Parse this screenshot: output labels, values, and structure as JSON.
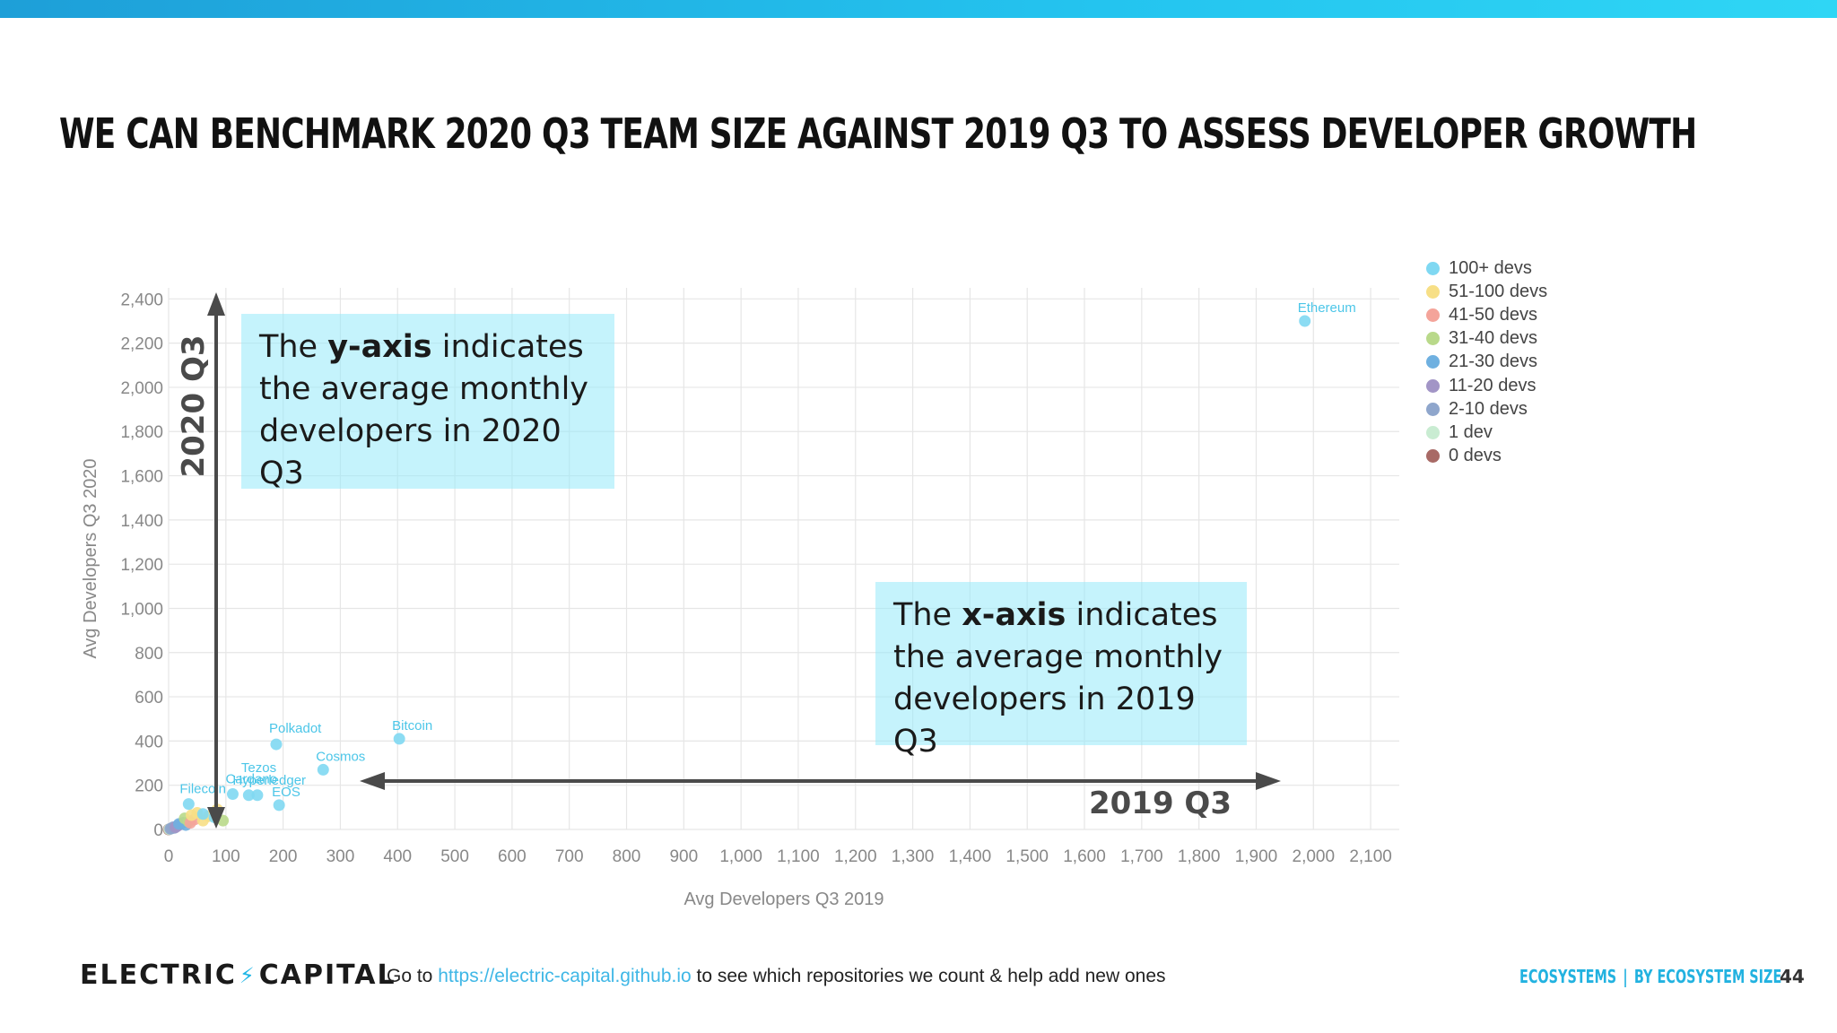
{
  "slide": {
    "title": "We can benchmark 2020 Q3 team size against 2019 Q3 to assess developer growth"
  },
  "colors": {
    "accent": "#24c4ef",
    "callout_bg": "#96e9fa",
    "arrow": "#4a4a4a",
    "point_label": "#4cc6e8"
  },
  "callouts": {
    "y": {
      "pre": "The ",
      "bold": "y-axis",
      "post": " indicates the average monthly developers in 2020 Q3"
    },
    "x": {
      "pre": "The ",
      "bold": "x-axis",
      "post": " indicates the average monthly developers in 2019 Q3"
    }
  },
  "arrows": {
    "y_label": "2020 Q3",
    "x_label": "2019 Q3"
  },
  "chart_data": {
    "type": "scatter",
    "xlabel": "Avg Developers Q3 2019",
    "ylabel": "Avg Developers Q3 2020",
    "xlim": [
      0,
      2150
    ],
    "ylim": [
      0,
      2450
    ],
    "xticks": [
      0,
      100,
      200,
      300,
      400,
      500,
      600,
      700,
      800,
      900,
      1000,
      1100,
      1200,
      1300,
      1400,
      1500,
      1600,
      1700,
      1800,
      1900,
      2000,
      2100
    ],
    "yticks": [
      0,
      200,
      400,
      600,
      800,
      1000,
      1200,
      1400,
      1600,
      1800,
      2000,
      2200,
      2400
    ],
    "grid": true,
    "legend_position": "right",
    "series": [
      {
        "name": "100+ devs",
        "color": "#7fd8f2",
        "points": [
          {
            "label": "Ethereum",
            "x": 1985,
            "y": 2300
          },
          {
            "label": "Bitcoin",
            "x": 403,
            "y": 410
          },
          {
            "label": "Polkadot",
            "x": 188,
            "y": 385
          },
          {
            "label": "Cosmos",
            "x": 270,
            "y": 270
          },
          {
            "label": "Tezos",
            "x": 155,
            "y": 155
          },
          {
            "label": "Cardano",
            "x": 112,
            "y": 160
          },
          {
            "label": "Hyperledger",
            "x": 140,
            "y": 155
          },
          {
            "label": "EOS",
            "x": 193,
            "y": 110
          },
          {
            "label": "Filecoin",
            "x": 35,
            "y": 115
          },
          {
            "label": "",
            "x": 60,
            "y": 70
          },
          {
            "label": "",
            "x": 80,
            "y": 55
          }
        ]
      },
      {
        "name": "51-100 devs",
        "color": "#f7df86",
        "points": [
          {
            "x": 50,
            "y": 75
          },
          {
            "x": 70,
            "y": 60
          },
          {
            "x": 40,
            "y": 65
          },
          {
            "x": 85,
            "y": 90
          },
          {
            "x": 60,
            "y": 40
          }
        ]
      },
      {
        "name": "41-50 devs",
        "color": "#f4a49a",
        "points": [
          {
            "x": 45,
            "y": 45
          },
          {
            "x": 38,
            "y": 30
          }
        ]
      },
      {
        "name": "31-40 devs",
        "color": "#b9d98a",
        "points": [
          {
            "x": 95,
            "y": 40
          },
          {
            "x": 35,
            "y": 35
          },
          {
            "x": 28,
            "y": 50
          }
        ]
      },
      {
        "name": "21-30 devs",
        "color": "#6fb0e0",
        "points": [
          {
            "x": 25,
            "y": 30
          },
          {
            "x": 30,
            "y": 20
          },
          {
            "x": 18,
            "y": 25
          }
        ]
      },
      {
        "name": "11-20 devs",
        "color": "#a295c6",
        "points": [
          {
            "x": 15,
            "y": 15
          },
          {
            "x": 20,
            "y": 22
          },
          {
            "x": 12,
            "y": 10
          }
        ]
      },
      {
        "name": "2-10 devs",
        "color": "#8fa6cc",
        "points": [
          {
            "x": 5,
            "y": 5
          },
          {
            "x": 8,
            "y": 10
          },
          {
            "x": 3,
            "y": 3
          },
          {
            "x": 10,
            "y": 7
          }
        ]
      },
      {
        "name": "1 dev",
        "color": "#c9ecd2",
        "points": [
          {
            "x": 1,
            "y": 1
          }
        ]
      },
      {
        "name": "0 devs",
        "color": "#a86a66",
        "points": [
          {
            "x": 0,
            "y": 0
          }
        ]
      }
    ]
  },
  "footer": {
    "logo_left": "ELECTRIC",
    "logo_bolt": "⚡",
    "logo_right": "CAPITAL",
    "text_pre": "Go to ",
    "link": "https://electric-capital.github.io",
    "text_post": " to see which repositories we count & help add new ones",
    "section_left": "ECOSYSTEMS",
    "section_sep": "|",
    "section_right": "BY ECOSYSTEM SIZE",
    "page_number": "44"
  }
}
